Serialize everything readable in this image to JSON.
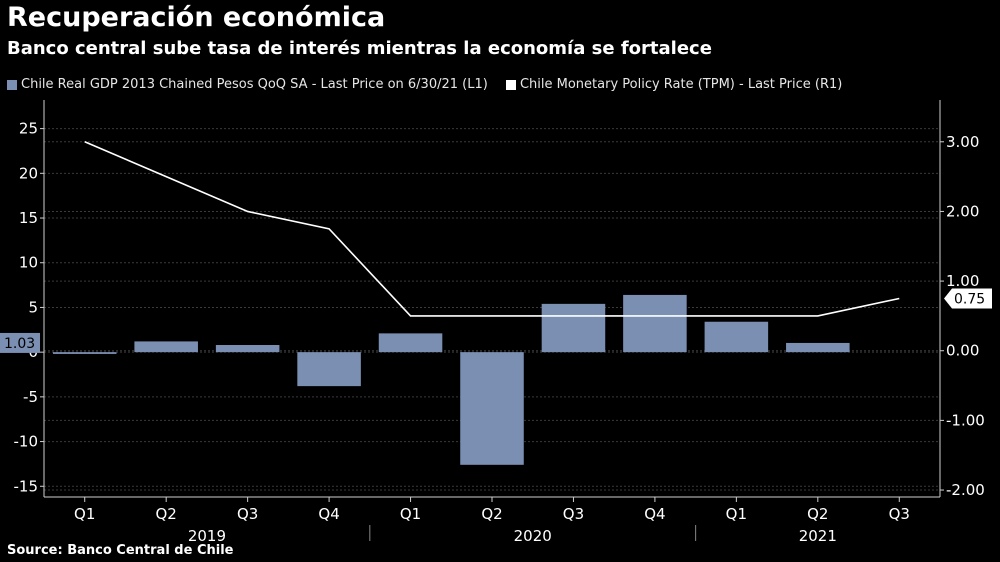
{
  "header": {
    "title": "Recuperación económica",
    "subtitle": "Banco central sube tasa de interés mientras la economía se fortalece"
  },
  "footer": {
    "source": "Source: Banco Central de Chile"
  },
  "colors": {
    "bar": "#7b8fb3",
    "line": "#ffffff",
    "background": "#000000",
    "grid": "#3a3a3a"
  },
  "chart_data": {
    "type": "bar",
    "categories": [
      "Q1",
      "Q2",
      "Q3",
      "Q4",
      "Q1",
      "Q2",
      "Q3",
      "Q4",
      "Q1",
      "Q2",
      "Q3"
    ],
    "year_groups": [
      {
        "label": "2019",
        "span": [
          0,
          3
        ]
      },
      {
        "label": "2020",
        "span": [
          4,
          7
        ]
      },
      {
        "label": "2021",
        "span": [
          8,
          10
        ]
      }
    ],
    "series": [
      {
        "name": "Chile Real GDP 2013 Chained Pesos QoQ SA - Last Price on 6/30/21 (L1)",
        "type": "bar",
        "axis": "left",
        "values": [
          -0.2,
          1.2,
          0.8,
          -3.8,
          2.1,
          -12.6,
          5.4,
          6.4,
          3.4,
          1.03,
          null
        ]
      },
      {
        "name": "Chile Monetary Policy Rate (TPM) - Last Price (R1)",
        "type": "line",
        "axis": "right",
        "values": [
          3.0,
          2.5,
          2.0,
          1.75,
          0.5,
          0.5,
          0.5,
          0.5,
          0.5,
          0.5,
          0.75
        ]
      }
    ],
    "left_axis": {
      "ticks": [
        25,
        20,
        15,
        10,
        5,
        0,
        -5,
        -10,
        -15
      ],
      "range": [
        -16.2,
        28.2
      ]
    },
    "right_axis": {
      "ticks": [
        "3.00",
        "2.00",
        "1.00",
        "0.00",
        "-1.00",
        "-2.00"
      ],
      "values": [
        3,
        2,
        1,
        0,
        -1,
        -2
      ],
      "range": [
        -2.1,
        3.6
      ]
    },
    "last_value_labels": {
      "left": "1.03",
      "right": "0.75"
    },
    "grid": true,
    "legend_position": "top-left"
  }
}
